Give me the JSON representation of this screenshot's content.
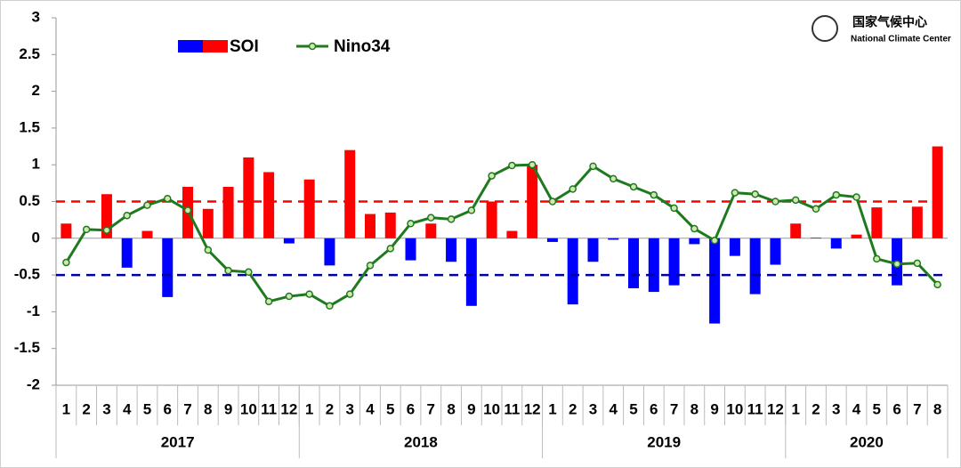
{
  "chart_data": {
    "type": "bar_line",
    "logo": {
      "title": "国家气候中心",
      "subtitle": "National Climate Center"
    },
    "categories": [
      "1",
      "2",
      "3",
      "4",
      "5",
      "6",
      "7",
      "8",
      "9",
      "10",
      "11",
      "12",
      "1",
      "2",
      "3",
      "4",
      "5",
      "6",
      "7",
      "8",
      "9",
      "10",
      "11",
      "12",
      "1",
      "2",
      "3",
      "4",
      "5",
      "6",
      "7",
      "8",
      "9",
      "10",
      "11",
      "12",
      "1",
      "2",
      "3",
      "4",
      "5",
      "6",
      "7",
      "8"
    ],
    "groups": [
      "2017",
      "2018",
      "2019",
      "2020"
    ],
    "series": [
      {
        "name": "SOI",
        "kind": "bar",
        "positive_color": "#ff0000",
        "negative_color": "#0000ff",
        "values": [
          0.2,
          0,
          0.6,
          -0.4,
          0.1,
          -0.8,
          0.7,
          0.4,
          0.7,
          1.1,
          0.9,
          -0.07,
          0.8,
          -0.37,
          1.2,
          0.33,
          0.35,
          -0.3,
          0.2,
          -0.32,
          -0.92,
          0.5,
          0.1,
          1.0,
          -0.05,
          -0.9,
          -0.32,
          -0.02,
          -0.68,
          -0.73,
          -0.64,
          -0.08,
          -1.16,
          -0.24,
          -0.76,
          -0.36,
          0.2,
          0.01,
          -0.14,
          0.05,
          0.42,
          -0.64,
          0.43,
          1.25
        ]
      },
      {
        "name": "Nino34",
        "kind": "line",
        "color": "#1f7a1f",
        "values": [
          -0.33,
          0.12,
          0.11,
          0.31,
          0.45,
          0.54,
          0.38,
          -0.16,
          -0.44,
          -0.46,
          -0.86,
          -0.79,
          -0.76,
          -0.92,
          -0.76,
          -0.37,
          -0.14,
          0.2,
          0.28,
          0.26,
          0.38,
          0.85,
          0.99,
          1.0,
          0.5,
          0.67,
          0.98,
          0.81,
          0.7,
          0.59,
          0.41,
          0.13,
          -0.03,
          0.62,
          0.6,
          0.5,
          0.52,
          0.4,
          0.59,
          0.56,
          -0.28,
          -0.35,
          -0.34,
          -0.63
        ]
      }
    ],
    "reference_lines": [
      {
        "value": 0.5,
        "color": "#ff0000"
      },
      {
        "value": -0.5,
        "color": "#0000a0"
      }
    ],
    "ylim": [
      -2,
      3
    ],
    "yticks": [
      -2,
      -1.5,
      -1,
      -0.5,
      0,
      0.5,
      1,
      1.5,
      2,
      2.5,
      3
    ]
  }
}
